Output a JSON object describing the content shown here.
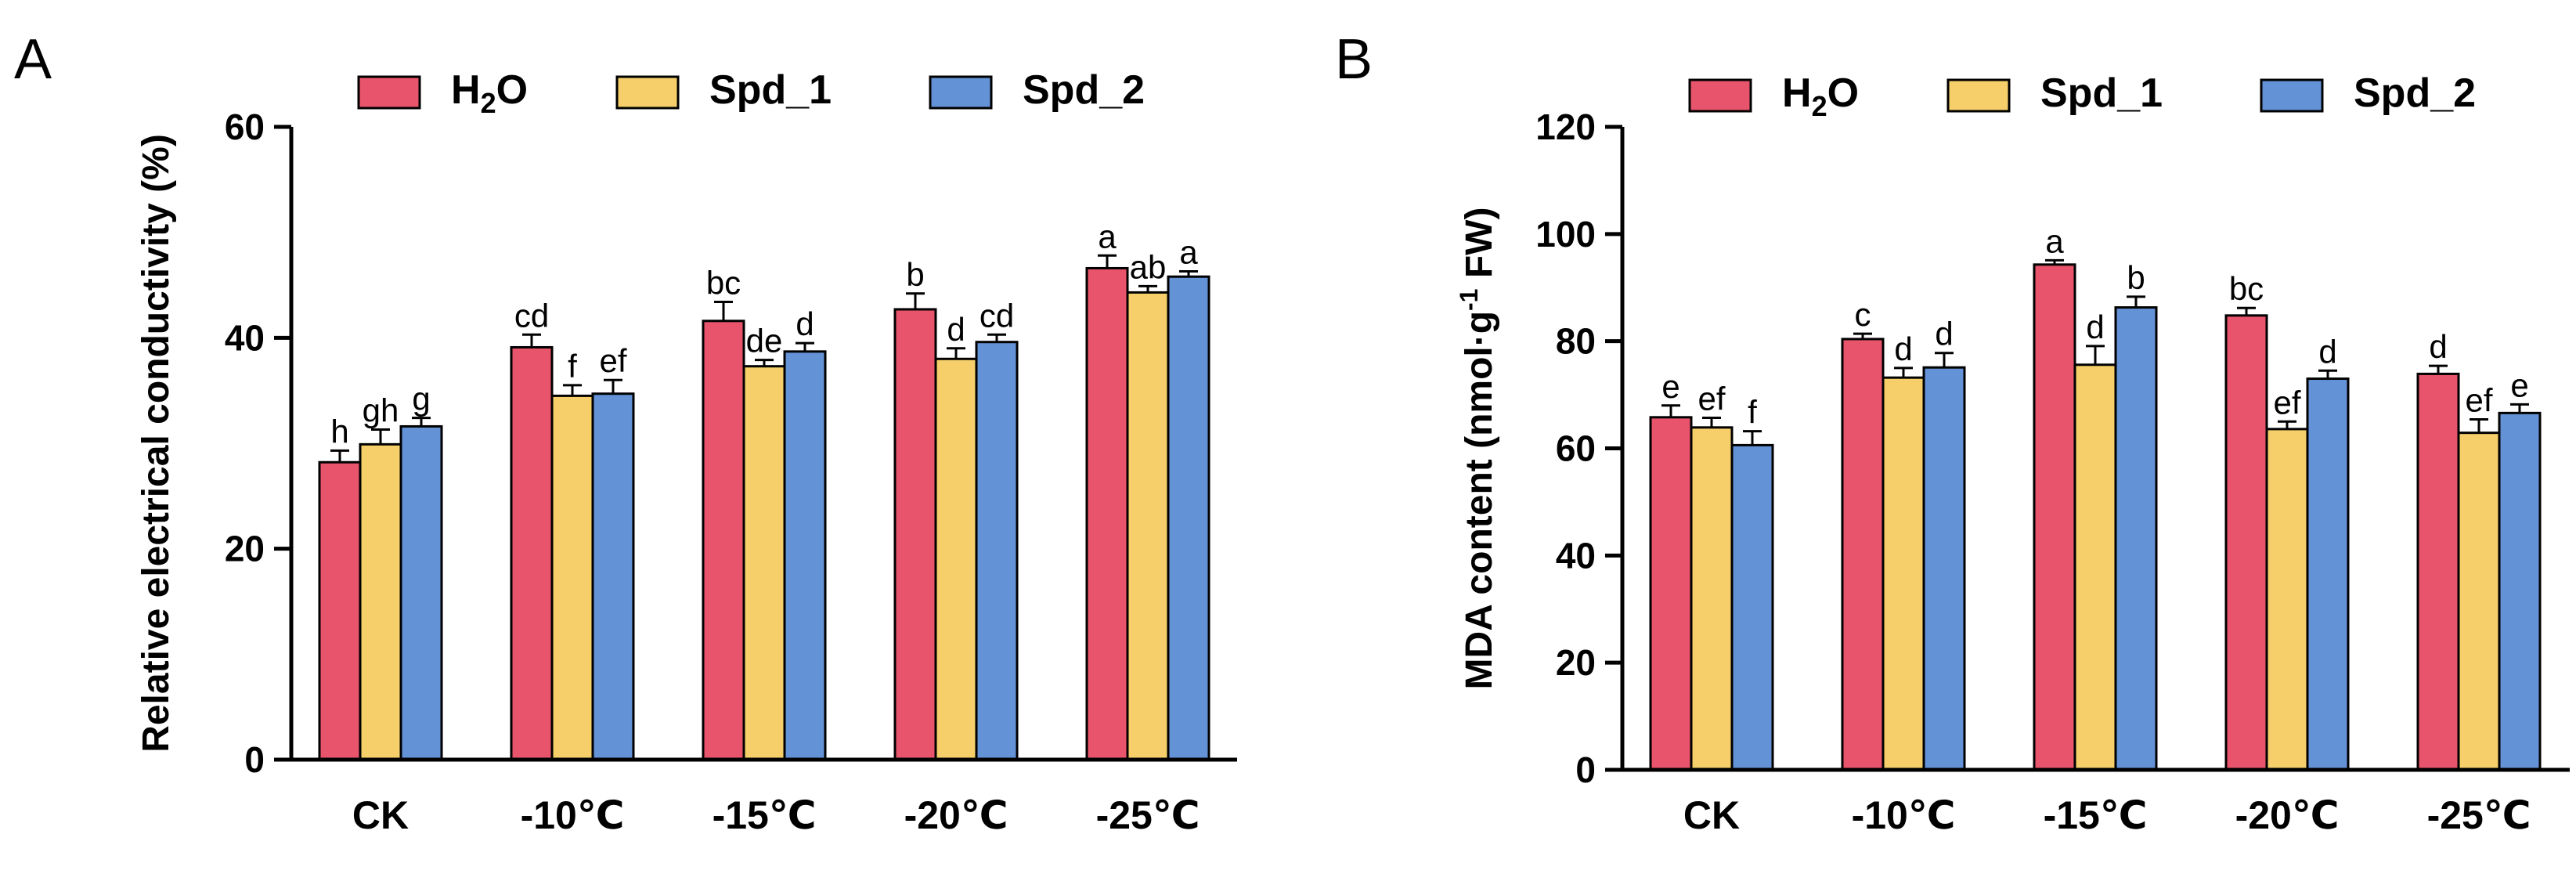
{
  "chart_data": [
    {
      "type": "bar",
      "panel": "A",
      "ylabel": "Relative electrical conductivity (%)",
      "ylim": [
        0,
        60
      ],
      "yticks": [
        0,
        20,
        40,
        60
      ],
      "categories": [
        "CK",
        "-10℃",
        "-15℃",
        "-20℃",
        "-25℃"
      ],
      "legend_position": "top",
      "series": [
        {
          "name": "H2O",
          "color": "#e8546b",
          "values": [
            28.2,
            39.1,
            41.6,
            42.7,
            46.6
          ],
          "errors": [
            1.1,
            1.2,
            1.8,
            1.5,
            1.2
          ],
          "letters": [
            "h",
            "cd",
            "bc",
            "b",
            "a"
          ]
        },
        {
          "name": "Spd_1",
          "color": "#f6cf6a",
          "values": [
            29.9,
            34.5,
            37.3,
            38.0,
            44.3
          ],
          "errors": [
            1.4,
            1.0,
            0.6,
            1.0,
            0.6
          ],
          "letters": [
            "gh",
            "f",
            "de",
            "d",
            "ab"
          ]
        },
        {
          "name": "Spd_2",
          "color": "#6492d6",
          "values": [
            31.6,
            34.7,
            38.7,
            39.6,
            45.8
          ],
          "errors": [
            0.8,
            1.3,
            0.8,
            0.7,
            0.5
          ],
          "letters": [
            "g",
            "ef",
            "d",
            "cd",
            "a"
          ]
        }
      ]
    },
    {
      "type": "bar",
      "panel": "B",
      "ylabel": "MDA content (nmol·g-1 FW)",
      "ylim": [
        0,
        120
      ],
      "yticks": [
        0,
        20,
        40,
        60,
        80,
        100,
        120
      ],
      "categories": [
        "CK",
        "-10℃",
        "-15℃",
        "-20℃",
        "-25℃"
      ],
      "legend_position": "top",
      "series": [
        {
          "name": "H2O",
          "color": "#e8546b",
          "values": [
            65.8,
            80.4,
            94.3,
            84.8,
            73.9
          ],
          "errors": [
            2.2,
            1.0,
            0.8,
            1.4,
            1.5
          ],
          "letters": [
            "e",
            "c",
            "a",
            "bc",
            "d"
          ]
        },
        {
          "name": "Spd_1",
          "color": "#f6cf6a",
          "values": [
            63.9,
            73.2,
            75.6,
            63.6,
            62.9
          ],
          "errors": [
            1.8,
            1.8,
            3.5,
            1.4,
            2.5
          ],
          "letters": [
            "ef",
            "d",
            "d",
            "ef",
            "ef"
          ]
        },
        {
          "name": "Spd_2",
          "color": "#6492d6",
          "values": [
            60.6,
            75.1,
            86.3,
            73.0,
            66.6
          ],
          "errors": [
            2.6,
            2.7,
            2.0,
            1.5,
            1.6
          ],
          "letters": [
            "f",
            "d",
            "b",
            "d",
            "e"
          ]
        }
      ]
    }
  ]
}
